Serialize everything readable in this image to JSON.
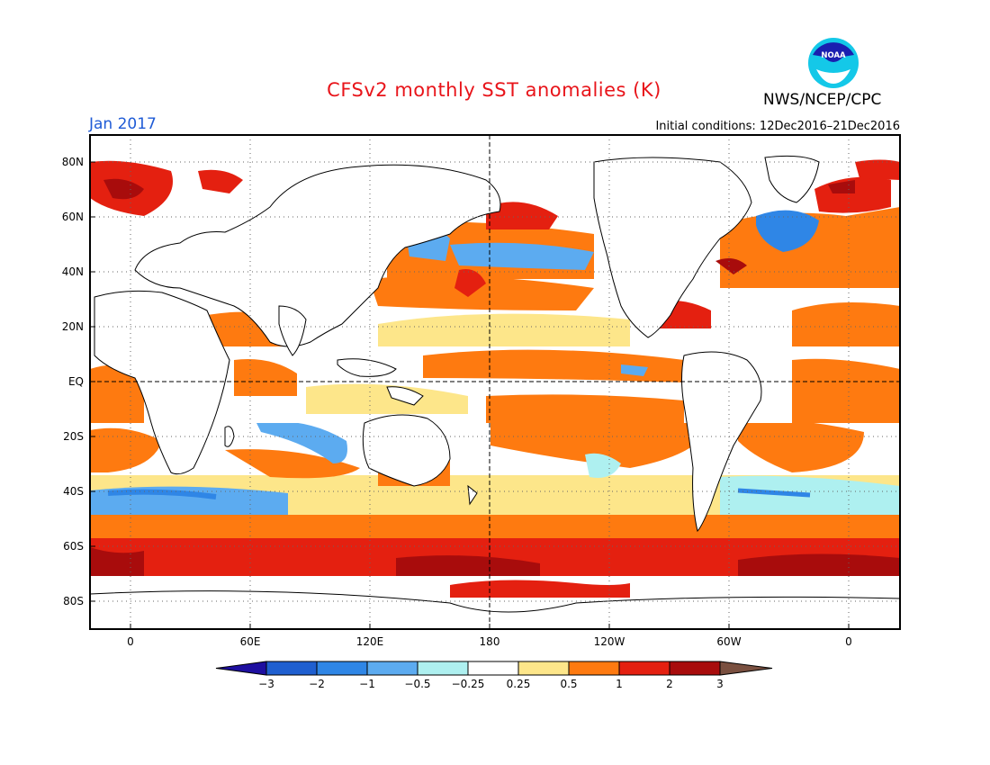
{
  "header": {
    "title": "CFSv2 monthly SST anomalies (K)",
    "month": "Jan 2017",
    "initial_conditions": "Initial conditions: 12Dec2016–21Dec2016",
    "agency": "NWS/NCEP/CPC",
    "logo_text": "NOAA"
  },
  "map": {
    "lat_labels": [
      "80N",
      "60N",
      "40N",
      "20N",
      "EQ",
      "20S",
      "40S",
      "60S",
      "80S"
    ],
    "lon_labels": [
      "0",
      "60E",
      "120E",
      "180",
      "120W",
      "60W",
      "0"
    ],
    "land_color": "#ffffff",
    "grid": "dotted"
  },
  "colorbar": {
    "labels": [
      "−3",
      "−2",
      "−1",
      "−0.5",
      "−0.25",
      "0.25",
      "0.5",
      "1",
      "2",
      "3"
    ],
    "colors": [
      "#1e0fa0",
      "#1f5fd0",
      "#2f86e6",
      "#5cabf0",
      "#aef0f0",
      "#ffffff",
      "#fde68a",
      "#fe7a10",
      "#e42010",
      "#a80c0c",
      "#7a5040"
    ]
  }
}
